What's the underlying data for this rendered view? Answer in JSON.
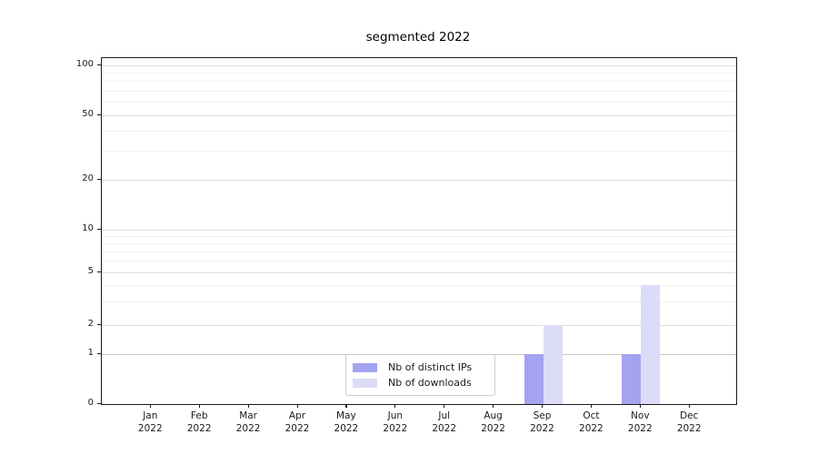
{
  "chart_data": {
    "type": "bar",
    "title": "segmented 2022",
    "year": "2022",
    "categories": [
      "Jan",
      "Feb",
      "Mar",
      "Apr",
      "May",
      "Jun",
      "Jul",
      "Aug",
      "Sep",
      "Oct",
      "Nov",
      "Dec"
    ],
    "series": [
      {
        "name": "Nb of distinct IPs",
        "color": "#a3a3f0",
        "values": [
          0,
          0,
          0,
          0,
          0,
          0,
          0,
          0,
          1,
          0,
          1,
          0
        ]
      },
      {
        "name": "Nb of downloads",
        "color": "#dcdcf8",
        "values": [
          0,
          0,
          0,
          0,
          0,
          0,
          0,
          0,
          2,
          0,
          4,
          0
        ]
      }
    ],
    "y_axis": {
      "scale": "segmented log",
      "ticks": [
        0,
        1,
        2,
        5,
        10,
        20,
        50,
        100
      ],
      "minor_gridlines": [
        3,
        4,
        6,
        7,
        8,
        9,
        30,
        40,
        60,
        70,
        80,
        90
      ],
      "range_top": 112
    },
    "x_axis": {
      "label_line2": "2022"
    },
    "grid": true,
    "legend_position": "lower center"
  },
  "colors": {
    "bar_distinct_ips": "#a3a3f0",
    "bar_downloads": "#dcdcf8",
    "grid_major": "#dcdcdc",
    "grid_minor": "#f0f0f0",
    "grid_unit_line": "#c6c6c6",
    "spine": "#1a1a1a"
  }
}
